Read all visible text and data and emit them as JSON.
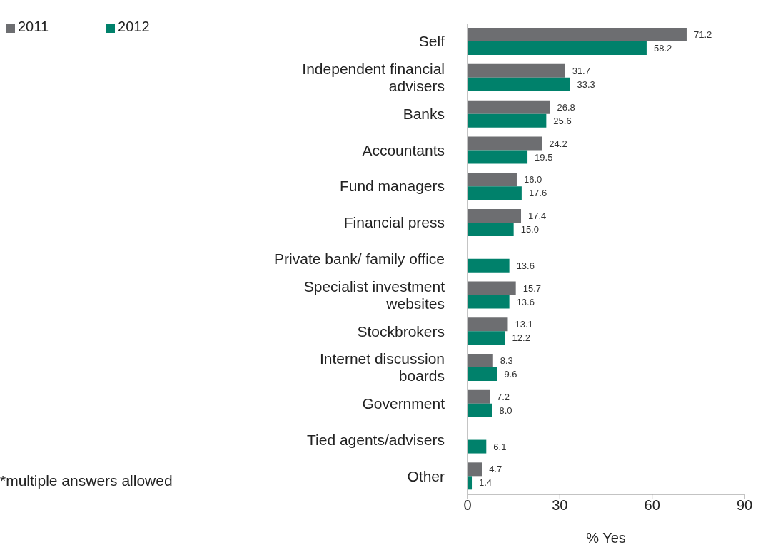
{
  "chart_data": {
    "type": "bar",
    "orientation": "horizontal",
    "xlabel": "% Yes",
    "categories": [
      "Self",
      "Independent financial\nadvisers",
      "Banks",
      "Accountants",
      "Fund managers",
      "Financial press",
      "Private bank/ family office",
      "Specialist investment\nwebsites",
      "Stockbrokers",
      "Internet discussion\nboards",
      "Government",
      "Tied agents/advisers",
      "Other"
    ],
    "series": [
      {
        "name": "2011",
        "color": "#6d6e71",
        "values": [
          71.2,
          31.7,
          26.8,
          24.2,
          16.0,
          17.4,
          null,
          15.7,
          13.1,
          8.3,
          7.2,
          null,
          4.7
        ],
        "value_labels": [
          "71.2",
          "31.7",
          "26.8",
          "24.2",
          "16.0",
          "17.4",
          null,
          "15.7",
          "13.1",
          "8.3",
          "7.2",
          null,
          "4.7"
        ]
      },
      {
        "name": "2012",
        "color": "#00816b",
        "values": [
          58.2,
          33.3,
          25.6,
          19.5,
          17.6,
          15.0,
          13.6,
          13.6,
          12.2,
          9.6,
          8.0,
          6.1,
          1.4
        ],
        "value_labels": [
          "58.2",
          "33.3",
          "25.6",
          "19.5",
          "17.6",
          "15.0",
          "13.6",
          "13.6",
          "12.2",
          "9.6",
          "8.0",
          "6.1",
          "1.4"
        ]
      }
    ],
    "xlim": [
      0,
      90
    ],
    "xticks": [
      0,
      30,
      60,
      90
    ],
    "legend": "top left",
    "annotations": [
      "*multiple answers allowed"
    ]
  }
}
